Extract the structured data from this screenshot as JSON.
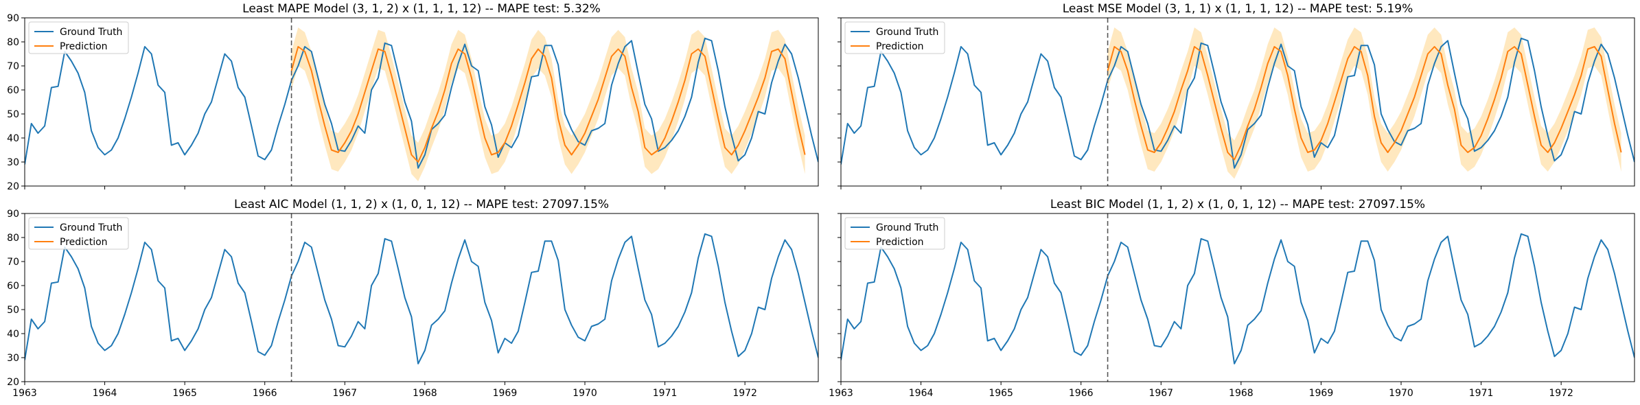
{
  "colors": {
    "ground_truth": "#1f77b4",
    "prediction": "#ff7f0e",
    "band": "#ffd68a",
    "split_line": "#555555",
    "axes": "#000000"
  },
  "x_tick_labels": [
    "1963",
    "1964",
    "1965",
    "1966",
    "1967",
    "1968",
    "1969",
    "1970",
    "1971",
    "1972"
  ],
  "y_tick_labels": [
    "20",
    "30",
    "40",
    "50",
    "60",
    "70",
    "80",
    "90"
  ],
  "chart_data": [
    {
      "type": "line",
      "title": "Least MAPE Model (3, 1, 2) x (1, 1, 1, 12) -- MAPE test: 5.32%",
      "xlim": [
        "1963-01",
        "1972-12"
      ],
      "ylim": [
        20,
        90
      ],
      "split_date": "1966-05",
      "legend_placement": "top-left",
      "show_prediction": true,
      "prediction_source": "mape",
      "series": [
        {
          "name": "Ground Truth"
        },
        {
          "name": "Prediction"
        }
      ]
    },
    {
      "type": "line",
      "title": "Least MSE Model (3, 1, 1) x (1, 1, 1, 12) -- MAPE test: 5.19%",
      "xlim": [
        "1963-01",
        "1972-12"
      ],
      "ylim": [
        20,
        90
      ],
      "split_date": "1966-05",
      "legend_placement": "top-left",
      "show_prediction": true,
      "prediction_source": "mse",
      "series": [
        {
          "name": "Ground Truth"
        },
        {
          "name": "Prediction"
        }
      ]
    },
    {
      "type": "line",
      "title": "Least AIC Model (1, 1, 2) x (1, 0, 1, 12) -- MAPE test: 27097.15%",
      "xlim": [
        "1963-01",
        "1972-12"
      ],
      "ylim": [
        20,
        90
      ],
      "split_date": "1966-05",
      "legend_placement": "top-left",
      "show_prediction": false,
      "series": [
        {
          "name": "Ground Truth"
        },
        {
          "name": "Prediction"
        }
      ]
    },
    {
      "type": "line",
      "title": "Least BIC Model (1, 1, 2) x (1, 0, 1, 12) -- MAPE test: 27097.15%",
      "xlim": [
        "1963-01",
        "1972-12"
      ],
      "ylim": [
        20,
        90
      ],
      "split_date": "1966-05",
      "legend_placement": "top-left",
      "show_prediction": false,
      "series": [
        {
          "name": "Ground Truth"
        },
        {
          "name": "Prediction"
        }
      ]
    }
  ],
  "ground_truth": {
    "start": "1963-01",
    "values": [
      29,
      46,
      42,
      45,
      61,
      61.5,
      76,
      72,
      67,
      59,
      43,
      36,
      33,
      35,
      40,
      48,
      57,
      67,
      78,
      75,
      62,
      59,
      37,
      38,
      33,
      37,
      42,
      50,
      55,
      65,
      75,
      72,
      61,
      57,
      45,
      32.5,
      31,
      35,
      45,
      54,
      64,
      70,
      78,
      76,
      65,
      54,
      46,
      35,
      34.5,
      39,
      45,
      42,
      60,
      65,
      79.5,
      78.5,
      67,
      55,
      47,
      27.5,
      33,
      43.5,
      46,
      49.5,
      61,
      71,
      79,
      70,
      68,
      53,
      45.5,
      32,
      38,
      36,
      41,
      53,
      65.5,
      66,
      78.5,
      78.5,
      70.5,
      50,
      43.5,
      38.5,
      37,
      43,
      44,
      46,
      62,
      71,
      78,
      80.5,
      67,
      54,
      48,
      34.5,
      36,
      39,
      43,
      49,
      57,
      71.5,
      81.5,
      80.5,
      68,
      53,
      41,
      30.5,
      33,
      40,
      51,
      50,
      63,
      72,
      79,
      75,
      65,
      53,
      41,
      30
    ]
  },
  "predictions": {
    "start": "1966-05",
    "mape": [
      68,
      78,
      76,
      68,
      56,
      45,
      35,
      34,
      38,
      43,
      50,
      59,
      68,
      77,
      76,
      66,
      55,
      44,
      33,
      30,
      36,
      44,
      51,
      60,
      71,
      77,
      75,
      65,
      52,
      40,
      33,
      34,
      38,
      45,
      54,
      63,
      73,
      77,
      74,
      65,
      48,
      37,
      33,
      37,
      42,
      49,
      56,
      65,
      74,
      77,
      74,
      61,
      51,
      36,
      33,
      35,
      40,
      47,
      55,
      64,
      75,
      77,
      74,
      61,
      48,
      36,
      33,
      37,
      43,
      50,
      57,
      65,
      76,
      77,
      73,
      59,
      45,
      33
    ],
    "mse": [
      68,
      78,
      76,
      68,
      56,
      45,
      35,
      34,
      38,
      44,
      51,
      60,
      68,
      78,
      76,
      66,
      55,
      44,
      34,
      31,
      37,
      45,
      52,
      61,
      71,
      78,
      76,
      66,
      52,
      40,
      34,
      35,
      39,
      46,
      55,
      64,
      73,
      78,
      76,
      66,
      49,
      38,
      34,
      38,
      43,
      50,
      57,
      66,
      75,
      78,
      75,
      62,
      52,
      37,
      34,
      36,
      41,
      48,
      56,
      65,
      76,
      78,
      75,
      62,
      49,
      37,
      34,
      38,
      44,
      51,
      58,
      66,
      77,
      78,
      74,
      60,
      46,
      34
    ]
  }
}
